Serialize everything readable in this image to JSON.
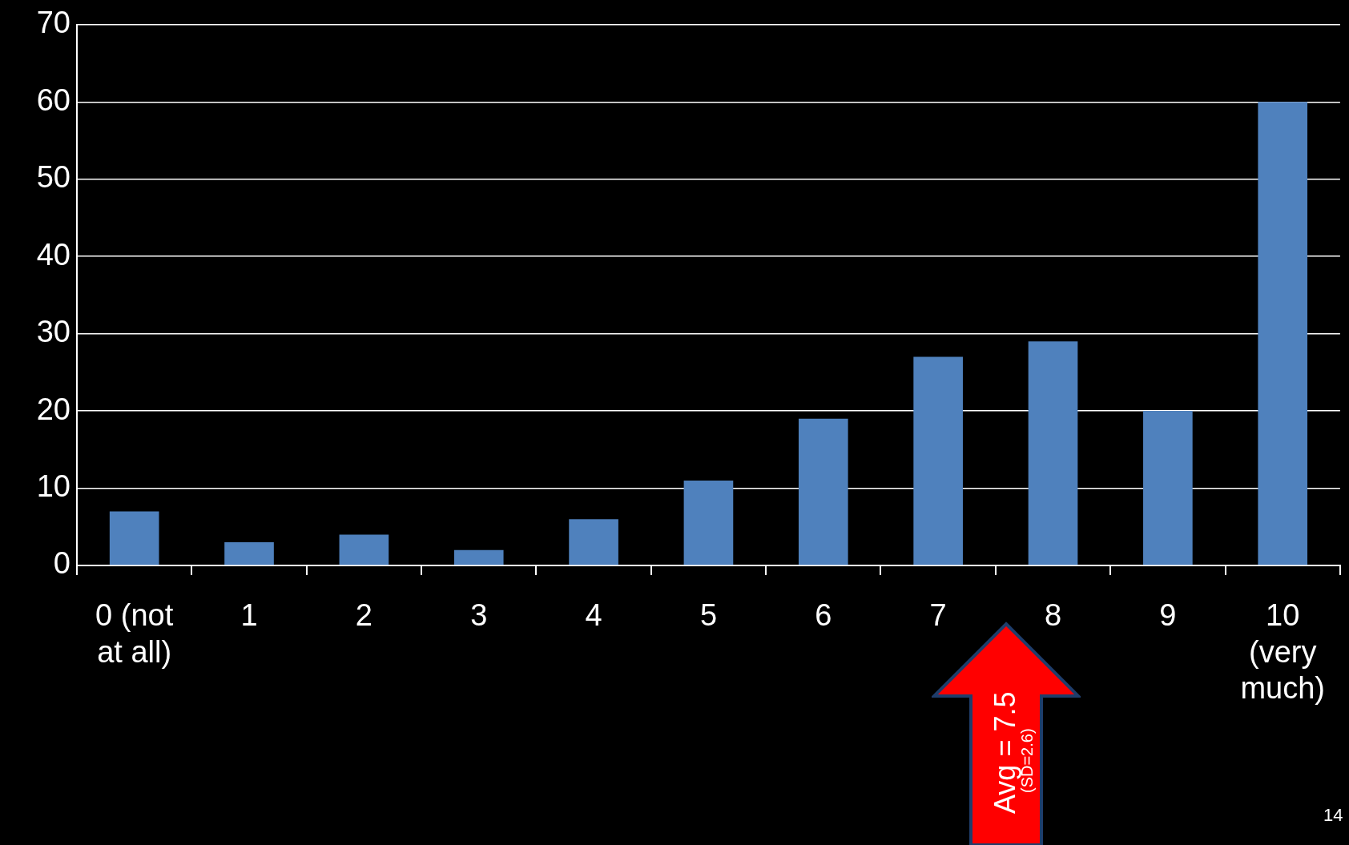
{
  "chart_data": {
    "type": "bar",
    "categories": [
      "0 (not at all)",
      "1",
      "2",
      "3",
      "4",
      "5",
      "6",
      "7",
      "8",
      "9",
      "10 (very much)"
    ],
    "values": [
      7,
      3,
      4,
      2,
      6,
      11,
      19,
      27,
      29,
      20,
      60
    ],
    "color": "#4f81bd",
    "ylim": [
      0,
      70
    ],
    "yticks": [
      0,
      10,
      20,
      30,
      40,
      50,
      60,
      70
    ],
    "grid": "y",
    "legend": false,
    "annotations": [
      "Avg = 7.5",
      "(SD=2.6)",
      "14"
    ]
  }
}
